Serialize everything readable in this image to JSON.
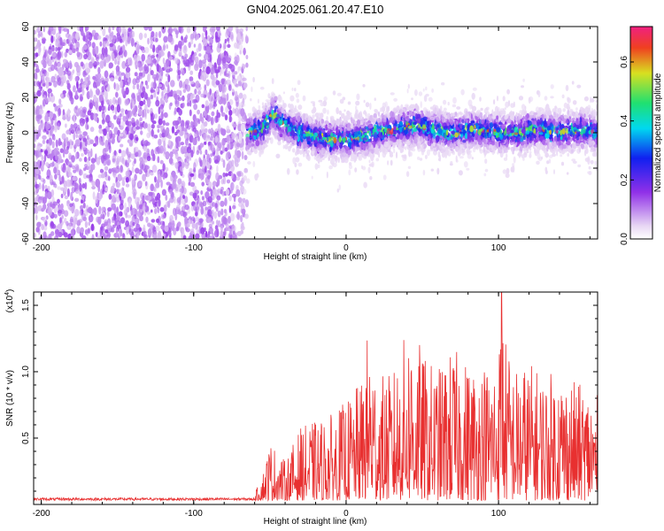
{
  "page": {
    "title": "GN04.2025.061.20.47.E10"
  },
  "chart_data": [
    {
      "type": "heatmap",
      "title": "GN04.2025.061.20.47.E10",
      "xlabel": "Height of straight line (km)",
      "ylabel": "Frequency (Hz)",
      "xlim": [
        -205,
        165
      ],
      "ylim": [
        -60,
        60
      ],
      "x_ticks": [
        -200,
        -100,
        0,
        100
      ],
      "y_ticks": [
        -60,
        -40,
        -20,
        0,
        20,
        40,
        60
      ],
      "colorbar": {
        "label": "Normalized spectral amplitude",
        "range": [
          0.0,
          0.72
        ],
        "ticks": [
          "0.0",
          "0.2",
          "0.4",
          "0.6"
        ],
        "tick_values": [
          0.0,
          0.2,
          0.4,
          0.6
        ],
        "colors": [
          "#e8d8f4",
          "#9030e8",
          "#1020f0",
          "#00d8f0",
          "#20e070",
          "#d8e020",
          "#f04020",
          "#f02080"
        ]
      },
      "noise_region": {
        "x": [
          -205,
          -65
        ],
        "freq": [
          -60,
          60
        ],
        "amplitude": [
          0.05,
          0.15
        ]
      },
      "signal_band": {
        "x": [
          -65,
          165
        ],
        "center_freq_points": [
          [
            -65,
            0
          ],
          [
            -55,
            2
          ],
          [
            -48,
            10
          ],
          [
            -40,
            4
          ],
          [
            -30,
            0
          ],
          [
            -20,
            -2
          ],
          [
            -10,
            -4
          ],
          [
            0,
            -4
          ],
          [
            10,
            -2
          ],
          [
            20,
            0
          ],
          [
            30,
            2
          ],
          [
            45,
            4
          ],
          [
            55,
            2
          ],
          [
            70,
            0
          ],
          [
            85,
            2
          ],
          [
            100,
            0
          ],
          [
            115,
            0
          ],
          [
            125,
            2
          ],
          [
            140,
            0
          ],
          [
            155,
            2
          ],
          [
            165,
            0
          ]
        ],
        "half_width_hz": [
          8,
          14
        ],
        "peak_amplitude": [
          0.3,
          0.65
        ]
      }
    },
    {
      "type": "line",
      "xlabel": "Height of straight line (km)",
      "ylabel": "SNR (10 * v/v)",
      "y_scale_label": "(x10",
      "y_scale_exponent": "4",
      "y_scale_suffix": ")",
      "xlim": [
        -205,
        165
      ],
      "ylim": [
        0,
        1.6
      ],
      "x_ticks": [
        -200,
        -100,
        0,
        100
      ],
      "y_ticks": [
        0.5,
        1.0,
        1.5
      ],
      "y_tick_labels": [
        "0.5",
        "1.0",
        "1.5"
      ],
      "color": "#e83030",
      "series": [
        {
          "envelope": [
            [
              -205,
              0.04
            ],
            [
              -100,
              0.04
            ],
            [
              -60,
              0.05
            ],
            [
              -55,
              0.2
            ],
            [
              -50,
              0.45
            ],
            [
              -40,
              0.3
            ],
            [
              -30,
              0.55
            ],
            [
              -20,
              0.6
            ],
            [
              -10,
              0.65
            ],
            [
              0,
              0.75
            ],
            [
              10,
              0.9
            ],
            [
              15,
              1.35
            ],
            [
              20,
              0.95
            ],
            [
              30,
              0.95
            ],
            [
              40,
              1.3
            ],
            [
              45,
              1.35
            ],
            [
              50,
              1.1
            ],
            [
              60,
              1.0
            ],
            [
              70,
              1.15
            ],
            [
              80,
              1.05
            ],
            [
              90,
              1.05
            ],
            [
              100,
              1.1
            ],
            [
              102,
              1.6
            ],
            [
              105,
              1.2
            ],
            [
              110,
              1.0
            ],
            [
              120,
              1.05
            ],
            [
              130,
              0.95
            ],
            [
              140,
              1.0
            ],
            [
              150,
              0.9
            ],
            [
              160,
              0.85
            ],
            [
              165,
              0.8
            ]
          ],
          "noise_floor": 0.03
        }
      ]
    }
  ]
}
